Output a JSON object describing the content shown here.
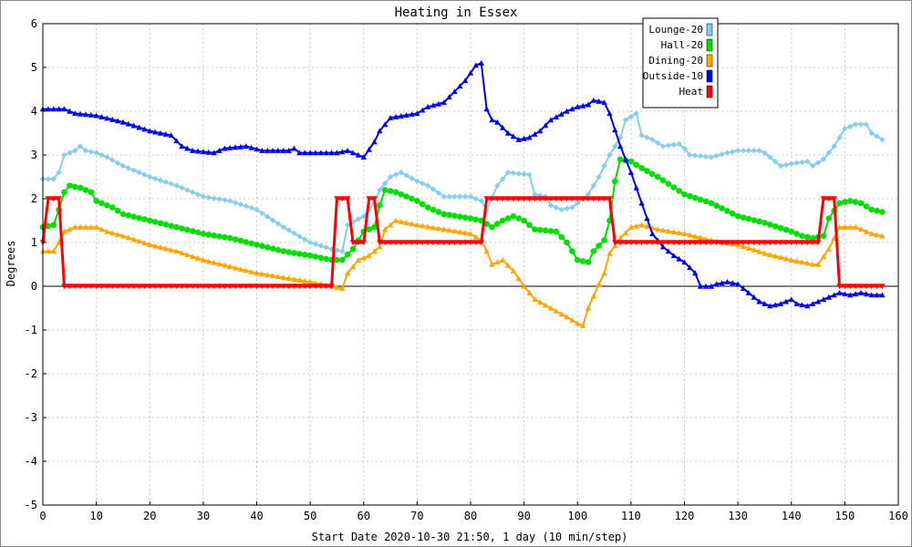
{
  "chart_data": {
    "type": "line",
    "title": "Heating in Essex",
    "xlabel": "Start Date 2020-10-30 21:50, 1 day (10 min/step)",
    "ylabel": "Degrees",
    "xlim": [
      0,
      160
    ],
    "ylim": [
      -5,
      6
    ],
    "x_ticks": [
      0,
      10,
      20,
      30,
      40,
      50,
      60,
      70,
      80,
      90,
      100,
      110,
      120,
      130,
      140,
      150,
      160
    ],
    "y_ticks": [
      -5,
      -4,
      -3,
      -2,
      -1,
      0,
      1,
      2,
      3,
      4,
      5,
      6
    ],
    "grid": true,
    "legend_position": "top-right",
    "series": [
      {
        "name": "Lounge-20",
        "color": "#87ceeb",
        "marker": "diamond",
        "points": [
          [
            0,
            2.45
          ],
          [
            2,
            2.45
          ],
          [
            3,
            2.6
          ],
          [
            4,
            3.0
          ],
          [
            6,
            3.1
          ],
          [
            7,
            3.2
          ],
          [
            8,
            3.1
          ],
          [
            10,
            3.05
          ],
          [
            12,
            2.95
          ],
          [
            15,
            2.75
          ],
          [
            20,
            2.5
          ],
          [
            25,
            2.3
          ],
          [
            30,
            2.05
          ],
          [
            35,
            1.95
          ],
          [
            40,
            1.75
          ],
          [
            45,
            1.35
          ],
          [
            50,
            1.0
          ],
          [
            54,
            0.85
          ],
          [
            56,
            0.8
          ],
          [
            57,
            1.4
          ],
          [
            60,
            1.6
          ],
          [
            62,
            1.9
          ],
          [
            63,
            2.2
          ],
          [
            65,
            2.5
          ],
          [
            67,
            2.6
          ],
          [
            70,
            2.4
          ],
          [
            72,
            2.3
          ],
          [
            75,
            2.05
          ],
          [
            80,
            2.05
          ],
          [
            82,
            1.95
          ],
          [
            83,
            1.75
          ],
          [
            85,
            2.3
          ],
          [
            87,
            2.6
          ],
          [
            91,
            2.55
          ],
          [
            92,
            2.1
          ],
          [
            94,
            2.05
          ],
          [
            95,
            1.85
          ],
          [
            97,
            1.75
          ],
          [
            99,
            1.8
          ],
          [
            100,
            1.9
          ],
          [
            102,
            2.1
          ],
          [
            104,
            2.5
          ],
          [
            106,
            3.0
          ],
          [
            108,
            3.4
          ],
          [
            109,
            3.8
          ],
          [
            111,
            3.95
          ],
          [
            112,
            3.45
          ],
          [
            114,
            3.35
          ],
          [
            116,
            3.2
          ],
          [
            119,
            3.25
          ],
          [
            120,
            3.15
          ],
          [
            121,
            3.0
          ],
          [
            125,
            2.95
          ],
          [
            128,
            3.05
          ],
          [
            130,
            3.1
          ],
          [
            134,
            3.1
          ],
          [
            135,
            3.05
          ],
          [
            137,
            2.85
          ],
          [
            138,
            2.75
          ],
          [
            140,
            2.8
          ],
          [
            143,
            2.85
          ],
          [
            144,
            2.75
          ],
          [
            146,
            2.9
          ],
          [
            148,
            3.2
          ],
          [
            150,
            3.6
          ],
          [
            152,
            3.7
          ],
          [
            154,
            3.7
          ],
          [
            155,
            3.5
          ],
          [
            157,
            3.35
          ]
        ]
      },
      {
        "name": "Hall-20",
        "color": "#00dd00",
        "marker": "circle",
        "points": [
          [
            0,
            1.35
          ],
          [
            2,
            1.4
          ],
          [
            3,
            1.75
          ],
          [
            4,
            2.15
          ],
          [
            5,
            2.3
          ],
          [
            7,
            2.25
          ],
          [
            9,
            2.15
          ],
          [
            10,
            1.95
          ],
          [
            13,
            1.8
          ],
          [
            15,
            1.65
          ],
          [
            20,
            1.5
          ],
          [
            25,
            1.35
          ],
          [
            30,
            1.2
          ],
          [
            35,
            1.1
          ],
          [
            40,
            0.95
          ],
          [
            45,
            0.8
          ],
          [
            50,
            0.7
          ],
          [
            54,
            0.6
          ],
          [
            56,
            0.6
          ],
          [
            58,
            0.85
          ],
          [
            60,
            1.25
          ],
          [
            62,
            1.35
          ],
          [
            63,
            1.85
          ],
          [
            64,
            2.2
          ],
          [
            66,
            2.15
          ],
          [
            70,
            1.95
          ],
          [
            72,
            1.8
          ],
          [
            75,
            1.65
          ],
          [
            80,
            1.55
          ],
          [
            82,
            1.5
          ],
          [
            84,
            1.35
          ],
          [
            86,
            1.5
          ],
          [
            88,
            1.6
          ],
          [
            90,
            1.5
          ],
          [
            92,
            1.3
          ],
          [
            96,
            1.25
          ],
          [
            98,
            1.0
          ],
          [
            100,
            0.6
          ],
          [
            102,
            0.55
          ],
          [
            103,
            0.8
          ],
          [
            105,
            1.05
          ],
          [
            106,
            1.5
          ],
          [
            107,
            2.4
          ],
          [
            108,
            2.9
          ],
          [
            110,
            2.85
          ],
          [
            112,
            2.7
          ],
          [
            115,
            2.5
          ],
          [
            120,
            2.1
          ],
          [
            125,
            1.9
          ],
          [
            130,
            1.6
          ],
          [
            135,
            1.45
          ],
          [
            140,
            1.25
          ],
          [
            142,
            1.15
          ],
          [
            144,
            1.1
          ],
          [
            146,
            1.15
          ],
          [
            147,
            1.55
          ],
          [
            149,
            1.9
          ],
          [
            151,
            1.95
          ],
          [
            153,
            1.9
          ],
          [
            155,
            1.75
          ],
          [
            157,
            1.7
          ]
        ]
      },
      {
        "name": "Dining-20",
        "color": "#ffa500",
        "marker": "triangle",
        "points": [
          [
            0,
            0.8
          ],
          [
            2,
            0.8
          ],
          [
            3,
            1.0
          ],
          [
            4,
            1.25
          ],
          [
            6,
            1.35
          ],
          [
            10,
            1.35
          ],
          [
            12,
            1.25
          ],
          [
            15,
            1.15
          ],
          [
            20,
            0.95
          ],
          [
            25,
            0.8
          ],
          [
            30,
            0.6
          ],
          [
            35,
            0.45
          ],
          [
            40,
            0.3
          ],
          [
            45,
            0.2
          ],
          [
            50,
            0.1
          ],
          [
            54,
            0.0
          ],
          [
            56,
            -0.05
          ],
          [
            57,
            0.3
          ],
          [
            59,
            0.6
          ],
          [
            61,
            0.7
          ],
          [
            63,
            0.9
          ],
          [
            64,
            1.3
          ],
          [
            66,
            1.5
          ],
          [
            70,
            1.4
          ],
          [
            75,
            1.3
          ],
          [
            80,
            1.2
          ],
          [
            82,
            1.05
          ],
          [
            83,
            0.8
          ],
          [
            84,
            0.5
          ],
          [
            86,
            0.6
          ],
          [
            88,
            0.35
          ],
          [
            90,
            0.0
          ],
          [
            92,
            -0.3
          ],
          [
            95,
            -0.5
          ],
          [
            98,
            -0.7
          ],
          [
            100,
            -0.85
          ],
          [
            101,
            -0.9
          ],
          [
            102,
            -0.5
          ],
          [
            104,
            0.05
          ],
          [
            105,
            0.3
          ],
          [
            106,
            0.75
          ],
          [
            108,
            1.1
          ],
          [
            110,
            1.35
          ],
          [
            112,
            1.4
          ],
          [
            115,
            1.3
          ],
          [
            120,
            1.2
          ],
          [
            125,
            1.05
          ],
          [
            130,
            0.95
          ],
          [
            135,
            0.75
          ],
          [
            140,
            0.6
          ],
          [
            144,
            0.5
          ],
          [
            145,
            0.5
          ],
          [
            147,
            0.85
          ],
          [
            149,
            1.35
          ],
          [
            152,
            1.35
          ],
          [
            155,
            1.2
          ],
          [
            157,
            1.15
          ]
        ]
      },
      {
        "name": "Outside-10",
        "color": "#0000ee",
        "marker": "triangle",
        "points": [
          [
            0,
            4.05
          ],
          [
            4,
            4.05
          ],
          [
            6,
            3.95
          ],
          [
            10,
            3.9
          ],
          [
            15,
            3.75
          ],
          [
            20,
            3.55
          ],
          [
            24,
            3.45
          ],
          [
            26,
            3.2
          ],
          [
            28,
            3.1
          ],
          [
            32,
            3.05
          ],
          [
            34,
            3.15
          ],
          [
            38,
            3.2
          ],
          [
            41,
            3.1
          ],
          [
            46,
            3.1
          ],
          [
            47,
            3.15
          ],
          [
            48,
            3.05
          ],
          [
            55,
            3.05
          ],
          [
            57,
            3.1
          ],
          [
            59,
            3.0
          ],
          [
            60,
            2.95
          ],
          [
            62,
            3.3
          ],
          [
            63,
            3.55
          ],
          [
            65,
            3.85
          ],
          [
            70,
            3.95
          ],
          [
            72,
            4.1
          ],
          [
            75,
            4.2
          ],
          [
            77,
            4.45
          ],
          [
            79,
            4.7
          ],
          [
            81,
            5.05
          ],
          [
            82,
            5.1
          ],
          [
            83,
            4.05
          ],
          [
            84,
            3.8
          ],
          [
            85,
            3.75
          ],
          [
            87,
            3.5
          ],
          [
            89,
            3.35
          ],
          [
            91,
            3.4
          ],
          [
            93,
            3.55
          ],
          [
            95,
            3.8
          ],
          [
            98,
            4.0
          ],
          [
            100,
            4.1
          ],
          [
            102,
            4.15
          ],
          [
            103,
            4.25
          ],
          [
            105,
            4.2
          ],
          [
            106,
            3.95
          ],
          [
            108,
            3.2
          ],
          [
            110,
            2.6
          ],
          [
            112,
            1.9
          ],
          [
            114,
            1.2
          ],
          [
            116,
            0.9
          ],
          [
            118,
            0.7
          ],
          [
            120,
            0.55
          ],
          [
            122,
            0.3
          ],
          [
            123,
            0.0
          ],
          [
            125,
            0.0
          ],
          [
            126,
            0.05
          ],
          [
            128,
            0.1
          ],
          [
            130,
            0.05
          ],
          [
            132,
            -0.15
          ],
          [
            134,
            -0.35
          ],
          [
            136,
            -0.45
          ],
          [
            138,
            -0.4
          ],
          [
            140,
            -0.3
          ],
          [
            141,
            -0.4
          ],
          [
            143,
            -0.45
          ],
          [
            145,
            -0.35
          ],
          [
            147,
            -0.25
          ],
          [
            149,
            -0.15
          ],
          [
            151,
            -0.2
          ],
          [
            153,
            -0.15
          ],
          [
            155,
            -0.2
          ],
          [
            157,
            -0.2
          ]
        ]
      },
      {
        "name": "Heat",
        "color": "#ff0000",
        "marker": "triangle-down",
        "points": [
          [
            0,
            1.0
          ],
          [
            1,
            2.0
          ],
          [
            3,
            2.0
          ],
          [
            4,
            0.0
          ],
          [
            54,
            0.0
          ],
          [
            55,
            2.0
          ],
          [
            57,
            2.0
          ],
          [
            58,
            1.0
          ],
          [
            60,
            1.0
          ],
          [
            61,
            2.0
          ],
          [
            62,
            2.0
          ],
          [
            63,
            1.0
          ],
          [
            82,
            1.0
          ],
          [
            83,
            2.0
          ],
          [
            106,
            2.0
          ],
          [
            107,
            1.0
          ],
          [
            145,
            1.0
          ],
          [
            146,
            2.0
          ],
          [
            148,
            2.0
          ],
          [
            149,
            0.0
          ],
          [
            157,
            0.0
          ]
        ]
      }
    ]
  }
}
